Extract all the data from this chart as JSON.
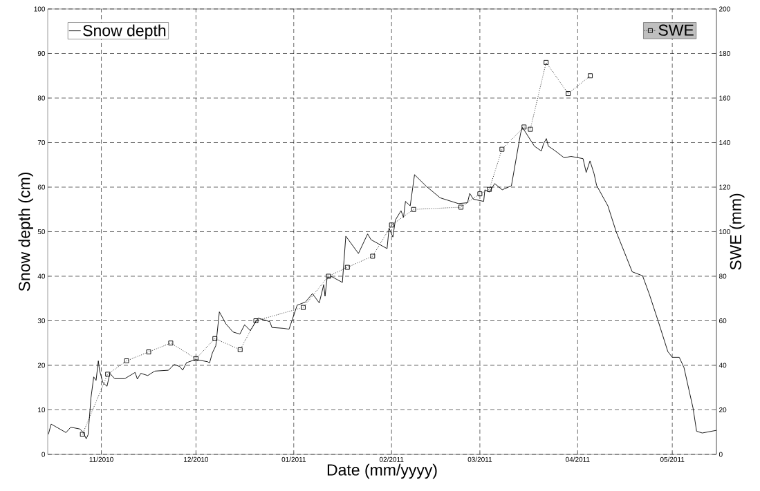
{
  "chart_data": {
    "type": "line",
    "xlabel": "Date (mm/yyyy)",
    "ylabel": "Snow depth (cm)",
    "y2label": "SWE (mm)",
    "xlim": [
      "2010-10-15",
      "2011-05-15"
    ],
    "xticks": [
      {
        "value": "2010-11-01",
        "label": "11/2010"
      },
      {
        "value": "2010-12-01",
        "label": "12/2010"
      },
      {
        "value": "2011-01-01",
        "label": "01/2011"
      },
      {
        "value": "2011-02-01",
        "label": "02/2011"
      },
      {
        "value": "2011-03-01",
        "label": "03/2011"
      },
      {
        "value": "2011-04-01",
        "label": "04/2011"
      },
      {
        "value": "2011-05-01",
        "label": "05/2011"
      }
    ],
    "ylim": [
      0,
      100
    ],
    "yticks": [
      0,
      10,
      20,
      30,
      40,
      50,
      60,
      70,
      80,
      90,
      100
    ],
    "y2lim": [
      0,
      200
    ],
    "y2ticks": [
      0,
      20,
      40,
      60,
      80,
      100,
      120,
      140,
      160,
      180,
      200
    ],
    "grid": true,
    "legend": "top",
    "series": [
      {
        "name": "Snow depth",
        "color": "#000000",
        "line_style": "solid",
        "marker": "none",
        "x": [
          "2010-10-15T05:00",
          "2010-10-16T02:00",
          "2010-10-17T14:00",
          "2010-10-20T19:00",
          "2010-10-22T07:00",
          "2010-10-25T05:00",
          "2010-10-26T07:00",
          "2010-10-27T05:00",
          "2010-10-27T19:00",
          "2010-10-28T17:00",
          "2010-10-29T14:00",
          "2010-10-30T08:00",
          "2010-10-31T01:00",
          "2010-10-31T10:00",
          "2010-11-01T12:00",
          "2010-11-02T19:00",
          "2010-11-03T17:00",
          "2010-11-05T05:00",
          "2010-11-08T10:00",
          "2010-11-11T17:00",
          "2010-11-12T10:00",
          "2010-11-13T12:00",
          "2010-11-15T17:00",
          "2010-11-17T22:00",
          "2010-11-22T07:00",
          "2010-11-24T02:00",
          "2010-11-25T22:00",
          "2010-11-26T19:00",
          "2010-11-28T00:00",
          "2010-11-30T22:00",
          "2010-12-04T17:00",
          "2010-12-05T07:00",
          "2010-12-06T05:00",
          "2010-12-07T07:00",
          "2010-12-08T10:00",
          "2010-12-10T12:00",
          "2010-12-12T17:00",
          "2010-12-14T22:00",
          "2010-12-16T10:00",
          "2010-12-18T05:00",
          "2010-12-20T17:00",
          "2010-12-24T10:00",
          "2010-12-25T02:00",
          "2010-12-28T19:00",
          "2010-12-30T12:00",
          "2011-01-02T02:00",
          "2011-01-04T17:00",
          "2011-01-06T22:00",
          "2011-01-09T02:00",
          "2011-01-10T12:00",
          "2011-01-10T22:00",
          "2011-01-11T14:00",
          "2011-01-13T02:00",
          "2011-01-16T10:00",
          "2011-01-17T12:00",
          "2011-01-21T12:00",
          "2011-01-24T10:00",
          "2011-01-25T12:00",
          "2011-01-30T14:00",
          "2011-01-31T05:00",
          "2011-02-01T10:00",
          "2011-02-02T05:00",
          "2011-02-04T00:00",
          "2011-02-04T19:00",
          "2011-02-05T10:00",
          "2011-02-06T22:00",
          "2011-02-08T07:00",
          "2011-02-12T00:00",
          "2011-02-16T10:00",
          "2011-02-22T05:00",
          "2011-02-25T02:00",
          "2011-02-25T19:00",
          "2011-02-26T22:00",
          "2011-03-02T05:00",
          "2011-03-02T14:00",
          "2011-03-04T00:00",
          "2011-03-05T17:00",
          "2011-03-08T02:00",
          "2011-03-11T00:00",
          "2011-03-13T22:00",
          "2011-03-14T12:00",
          "2011-03-18T07:00",
          "2011-03-20T12:00",
          "2011-03-21T05:00",
          "2011-03-22T02:00",
          "2011-03-22T17:00",
          "2011-03-24T19:00",
          "2011-03-27T17:00",
          "2011-03-29T22:00",
          "2011-04-02T17:00",
          "2011-04-03T17:00",
          "2011-04-04T22:00",
          "2011-04-06T05:00",
          "2011-04-07T00:00",
          "2011-04-10T14:00",
          "2011-04-13T05:00",
          "2011-04-15T17:00",
          "2011-04-18T07:00",
          "2011-04-21T14:00",
          "2011-04-23T17:00",
          "2011-04-26T14:00",
          "2011-04-29T14:00",
          "2011-05-01T00:00",
          "2011-05-03T05:00",
          "2011-05-04T17:00",
          "2011-05-06T12:00",
          "2011-05-07T14:00",
          "2011-05-08T17:00",
          "2011-05-10T12:00",
          "2011-05-15T00:00"
        ],
        "values": [
          4.5,
          6.8,
          6.2,
          4.9,
          6.1,
          5.7,
          4.9,
          3.5,
          4.4,
          12.7,
          17.4,
          16.6,
          21.0,
          18.9,
          16.1,
          15.3,
          18.2,
          17.0,
          17.0,
          18.4,
          16.9,
          18.2,
          17.7,
          18.7,
          18.9,
          20.2,
          19.7,
          18.9,
          20.6,
          21.3,
          20.8,
          20.5,
          22.8,
          24.4,
          32.0,
          29.3,
          27.5,
          27.0,
          29.1,
          27.8,
          30.6,
          29.8,
          28.5,
          28.3,
          28.1,
          33.5,
          34.2,
          36.1,
          34.0,
          38.1,
          35.5,
          39.7,
          39.9,
          38.6,
          49.0,
          45.1,
          49.5,
          48.2,
          46.2,
          50.8,
          48.8,
          52.6,
          54.7,
          53.2,
          56.8,
          55.8,
          62.8,
          60.2,
          57.6,
          56.3,
          56.5,
          58.6,
          57.3,
          56.8,
          59.4,
          58.9,
          60.8,
          59.4,
          60.3,
          72.1,
          73.4,
          69.2,
          68.1,
          69.8,
          70.9,
          69.2,
          68.2,
          66.6,
          66.9,
          66.4,
          63.3,
          65.9,
          63.0,
          60.4,
          55.8,
          50.0,
          45.6,
          41.0,
          40.1,
          36.0,
          29.8,
          23.1,
          21.8,
          21.8,
          19.5,
          13.8,
          10.4,
          5.2,
          4.8,
          5.4
        ]
      },
      {
        "name": "SWE",
        "color": "#000000",
        "axis": "y2",
        "line_style": "dotted",
        "marker": "square",
        "x": [
          "2010-10-26",
          "2010-11-03",
          "2010-11-09",
          "2010-11-16",
          "2010-11-23",
          "2010-12-01",
          "2010-12-07",
          "2010-12-15",
          "2010-12-20",
          "2011-01-04",
          "2011-01-12",
          "2011-01-18",
          "2011-01-26",
          "2011-02-01",
          "2011-02-08",
          "2011-02-23",
          "2011-03-01",
          "2011-03-04",
          "2011-03-08",
          "2011-03-15",
          "2011-03-17",
          "2011-03-22",
          "2011-03-29",
          "2011-04-05"
        ],
        "values": [
          9,
          36,
          42,
          46,
          50,
          43,
          52,
          47,
          60,
          66,
          80,
          84,
          89,
          103,
          110,
          111,
          117,
          119,
          137,
          147,
          146,
          176,
          162,
          170
        ]
      }
    ]
  }
}
